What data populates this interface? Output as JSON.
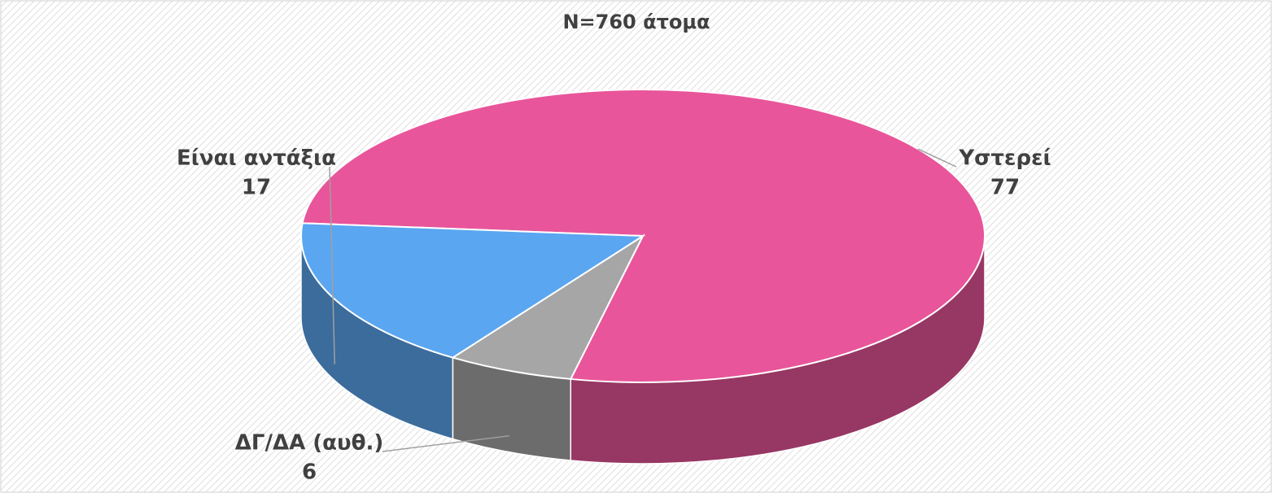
{
  "chart_data": {
    "type": "pie3d",
    "title": "N=760 άτομα",
    "categories": [
      "Υστερεί",
      "ΔΓ/ΔΑ (αυθ.)",
      "Είναι αντάξια"
    ],
    "values": [
      77,
      6,
      17
    ],
    "colors": [
      "#e8559a",
      "#a6a6a6",
      "#5aa6f0"
    ]
  }
}
